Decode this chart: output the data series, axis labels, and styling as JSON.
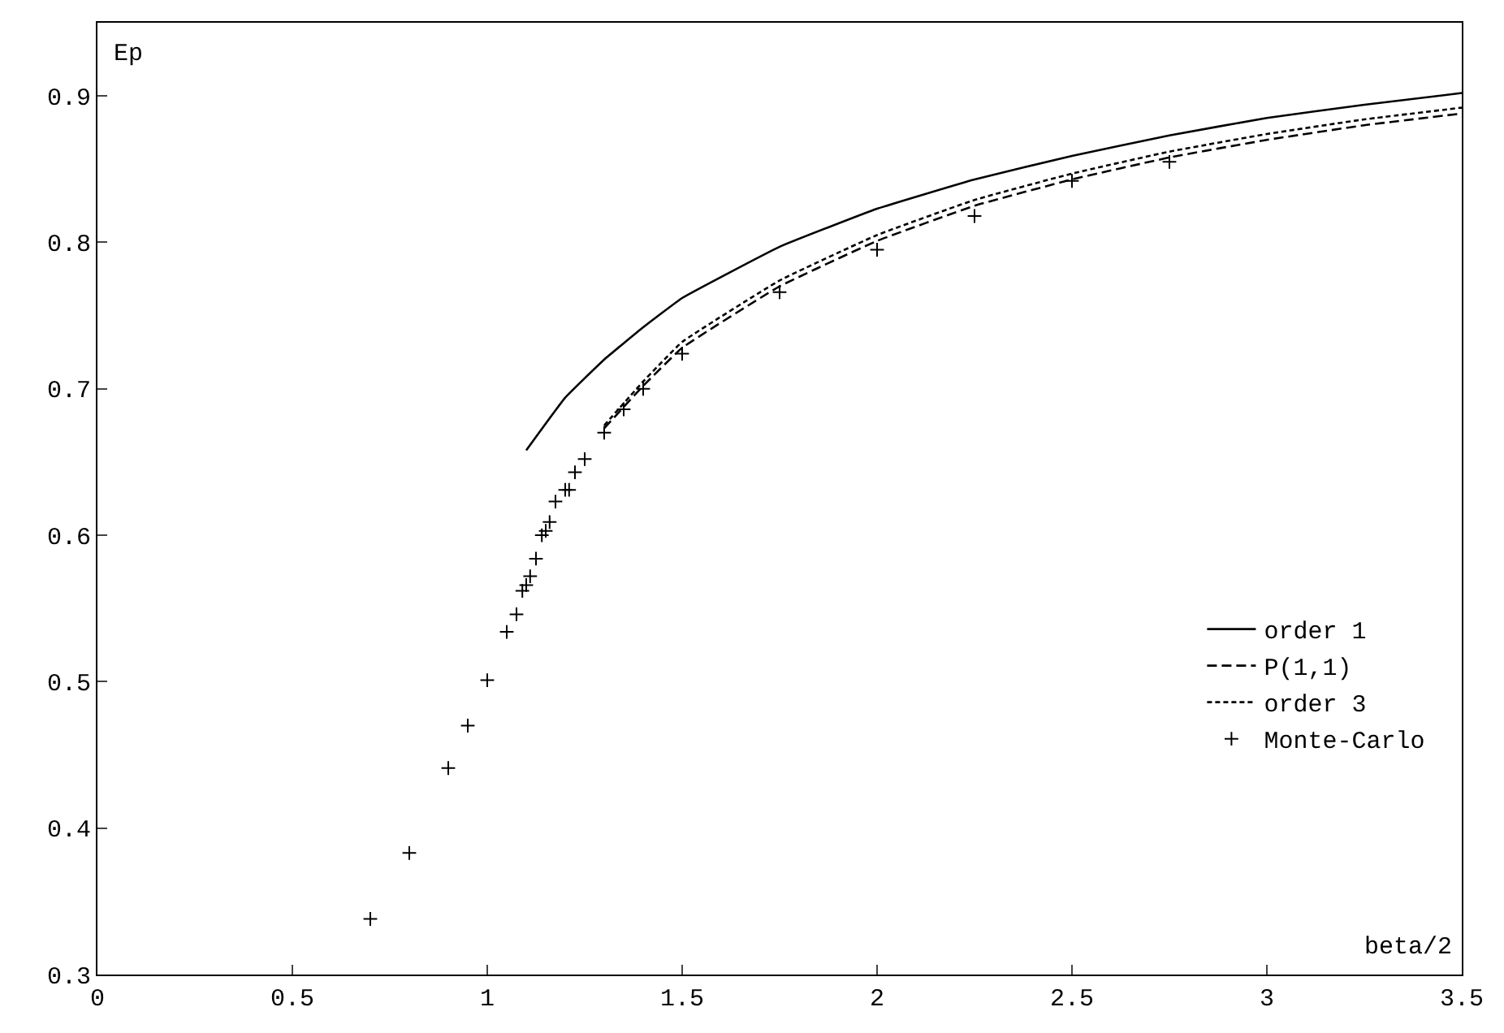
{
  "chart_data": {
    "type": "line",
    "xlabel": "beta/2",
    "ylabel": "Ep",
    "xlim": [
      0,
      3.5
    ],
    "ylim": [
      0.3,
      0.95
    ],
    "xticks": [
      0,
      0.5,
      1,
      1.5,
      2,
      2.5,
      3,
      3.5
    ],
    "yticks": [
      0.3,
      0.4,
      0.5,
      0.6,
      0.7,
      0.8,
      0.9
    ],
    "legend": "bottom right",
    "series": [
      {
        "name": "order 1",
        "line_style": "solid",
        "color": "#000000",
        "x": [
          1.1,
          1.2,
          1.3,
          1.4,
          1.5,
          1.75,
          2.0,
          2.25,
          2.5,
          2.75,
          3.0,
          3.25,
          3.5
        ],
        "values": [
          0.658,
          0.694,
          0.72,
          0.742,
          0.762,
          0.797,
          0.823,
          0.843,
          0.859,
          0.873,
          0.885,
          0.894,
          0.902
        ]
      },
      {
        "name": "P(1,1)",
        "line_style": "dashed",
        "color": "#000000",
        "x": [
          1.3,
          1.4,
          1.5,
          1.75,
          2.0,
          2.25,
          2.5,
          2.75,
          3.0,
          3.25,
          3.5
        ],
        "values": [
          0.673,
          0.702,
          0.728,
          0.77,
          0.801,
          0.825,
          0.843,
          0.858,
          0.87,
          0.88,
          0.888
        ]
      },
      {
        "name": "order 3",
        "line_style": "dotted",
        "color": "#000000",
        "x": [
          1.3,
          1.4,
          1.5,
          1.75,
          2.0,
          2.25,
          2.5,
          2.75,
          3.0,
          3.25,
          3.5
        ],
        "values": [
          0.675,
          0.705,
          0.732,
          0.774,
          0.805,
          0.829,
          0.847,
          0.862,
          0.874,
          0.884,
          0.892
        ]
      },
      {
        "name": "Monte-Carlo",
        "type": "scatter",
        "marker": "cross",
        "color": "#000000",
        "x": [
          0.7,
          0.8,
          0.9,
          0.95,
          1.0,
          1.05,
          1.075,
          1.09,
          1.1,
          1.11,
          1.125,
          1.14,
          1.15,
          1.16,
          1.175,
          1.2,
          1.21,
          1.225,
          1.25,
          1.3,
          1.35,
          1.4,
          1.5,
          1.75,
          2.0,
          2.25,
          2.5,
          2.75
        ],
        "values": [
          0.338,
          0.383,
          0.441,
          0.47,
          0.501,
          0.534,
          0.546,
          0.562,
          0.566,
          0.572,
          0.584,
          0.6,
          0.603,
          0.609,
          0.623,
          0.631,
          0.631,
          0.643,
          0.652,
          0.67,
          0.686,
          0.7,
          0.724,
          0.766,
          0.795,
          0.818,
          0.842,
          0.855
        ]
      }
    ]
  }
}
